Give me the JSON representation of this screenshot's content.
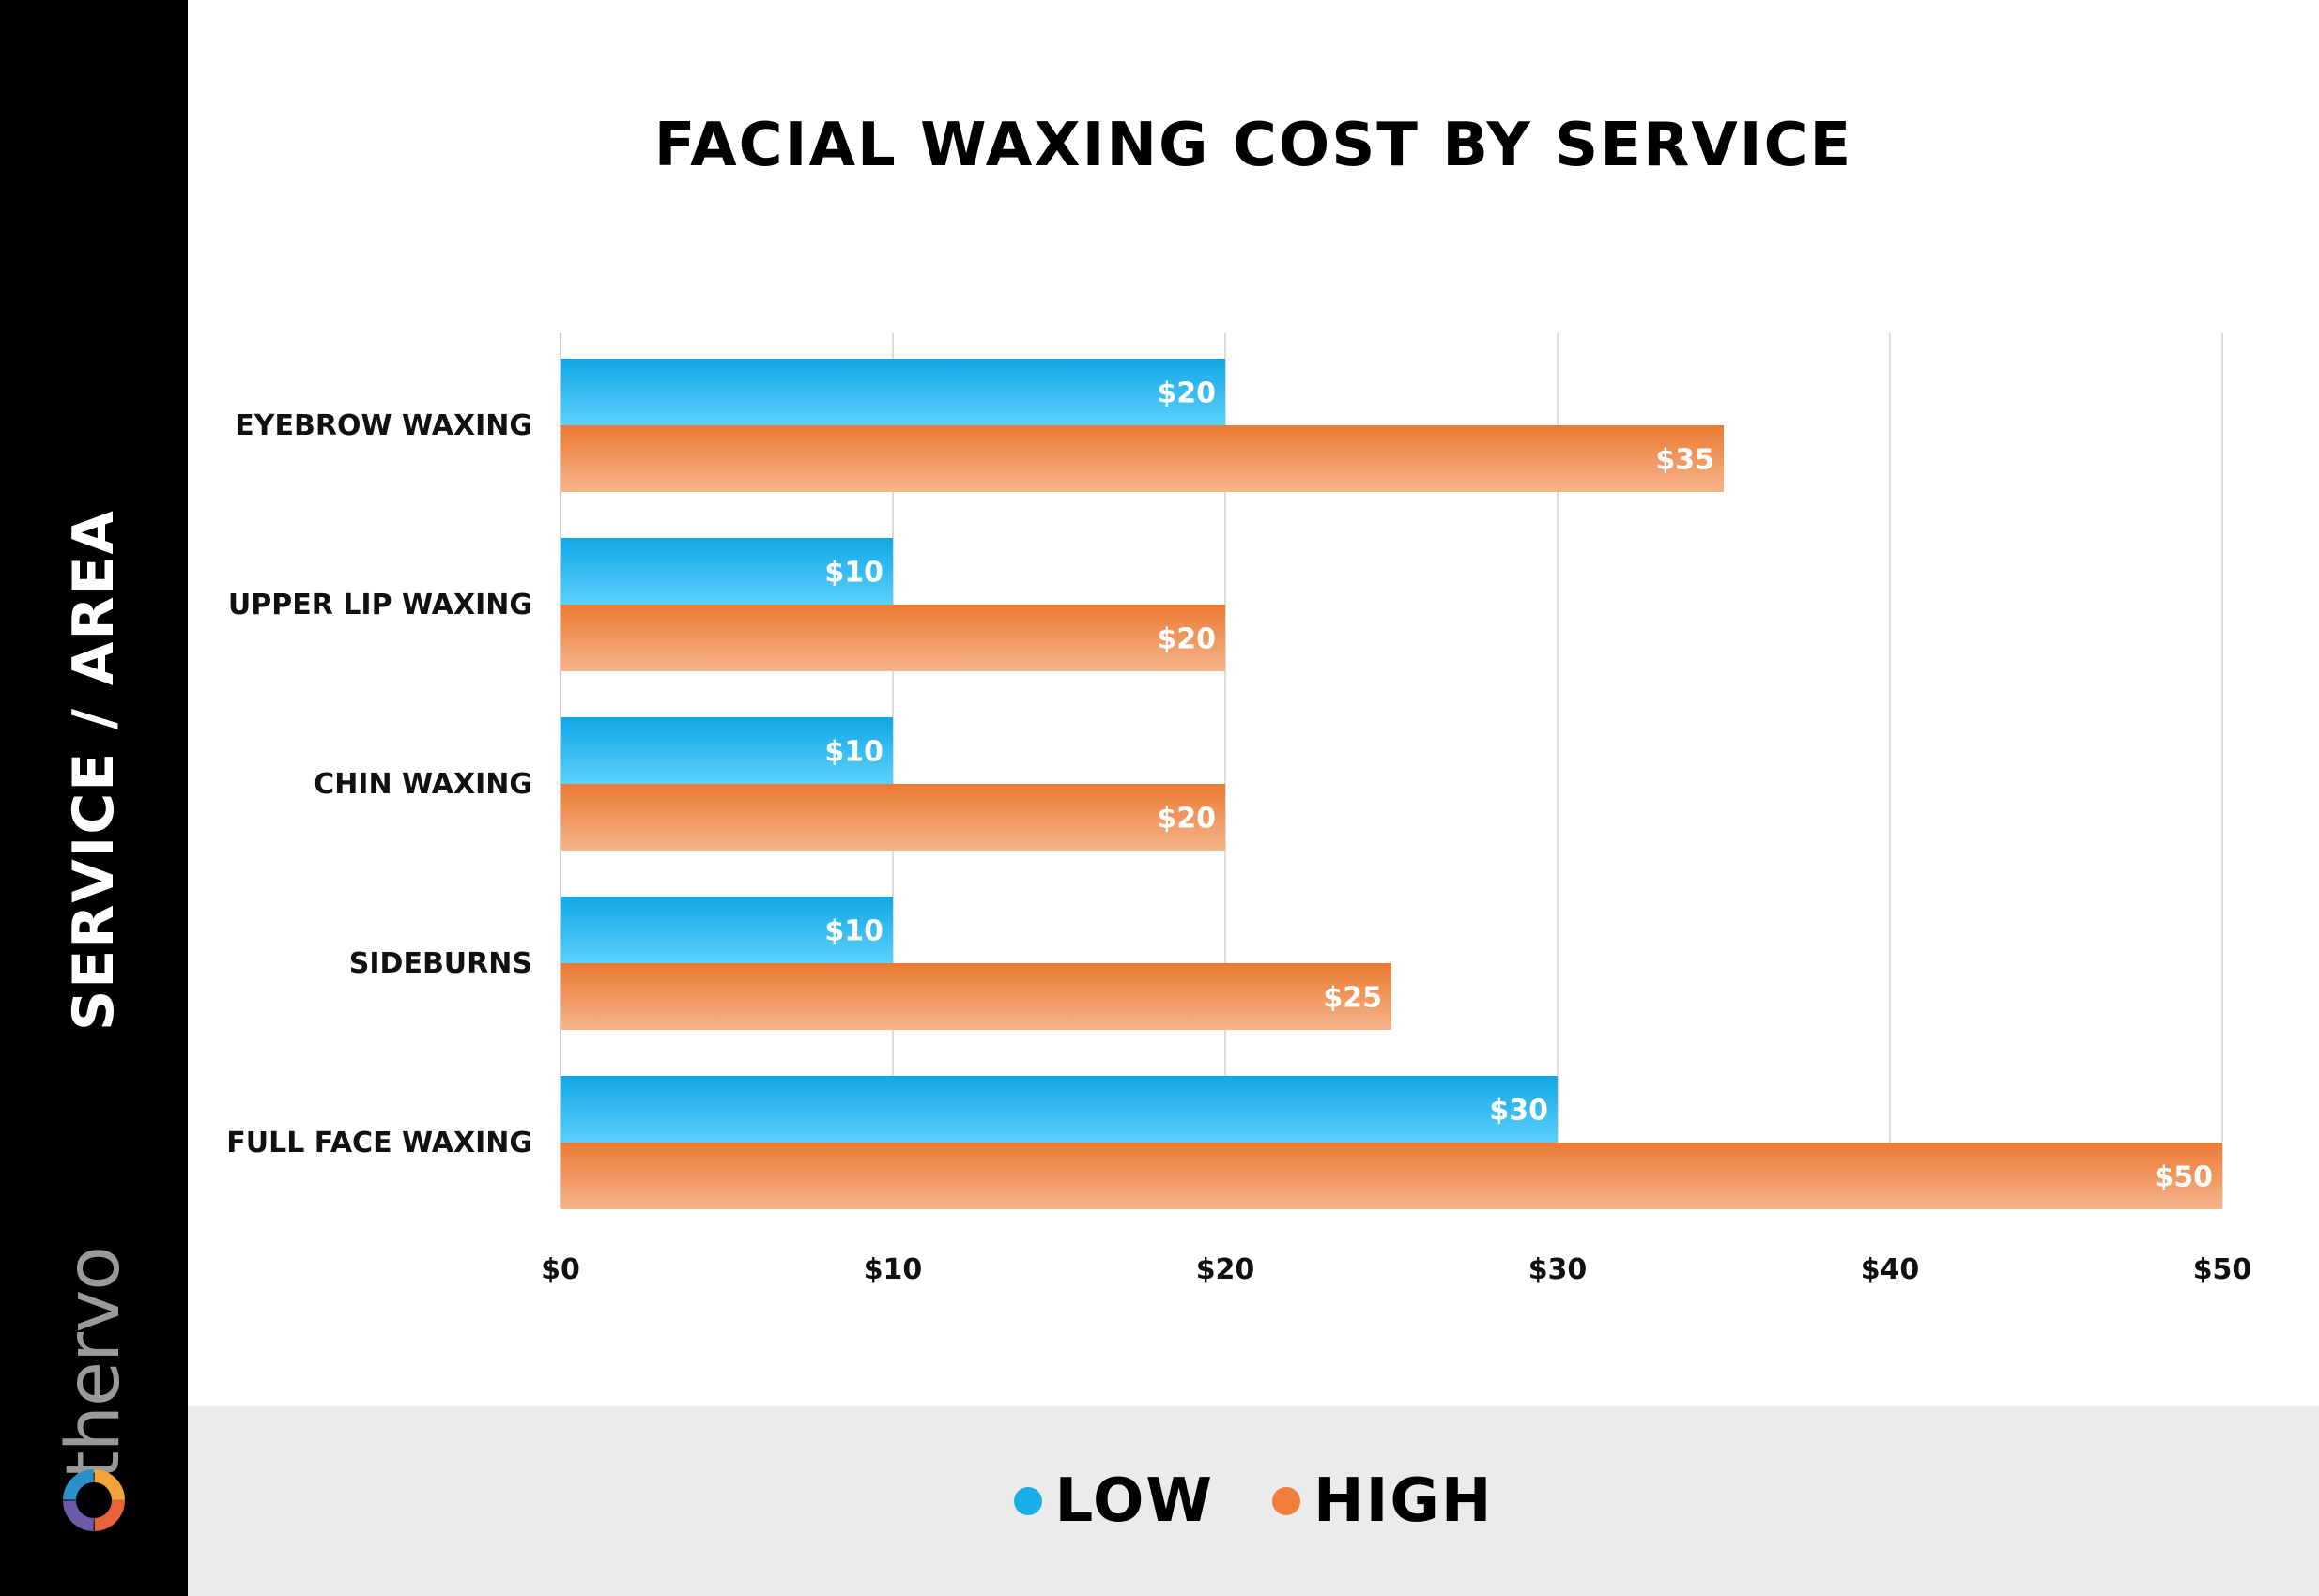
{
  "brand": {
    "name": "thervo"
  },
  "chart_data": {
    "type": "bar",
    "orientation": "horizontal",
    "title": "FACIAL WAXING COST BY SERVICE",
    "ylabel": "SERVICE / AREA",
    "xlabel": "",
    "categories": [
      "EYEBROW WAXING",
      "UPPER LIP WAXING",
      "CHIN WAXING",
      "SIDEBURNS",
      "FULL FACE WAXING"
    ],
    "series": [
      {
        "name": "LOW",
        "values": [
          20,
          10,
          10,
          10,
          30
        ],
        "color": "#1aaee8",
        "labels": [
          "$20",
          "$10",
          "$10",
          "$10",
          "$30"
        ]
      },
      {
        "name": "HIGH",
        "values": [
          35,
          20,
          20,
          25,
          50
        ],
        "color": "#ef7f3a",
        "labels": [
          "$35",
          "$20",
          "$20",
          "$25",
          "$50"
        ]
      }
    ],
    "xlim": [
      0,
      50
    ],
    "xticks": [
      0,
      10,
      20,
      30,
      40,
      50
    ],
    "xtick_labels": [
      "$0",
      "$10",
      "$20",
      "$30",
      "$40",
      "$50"
    ],
    "grid": true,
    "legend_position": "bottom-center"
  }
}
